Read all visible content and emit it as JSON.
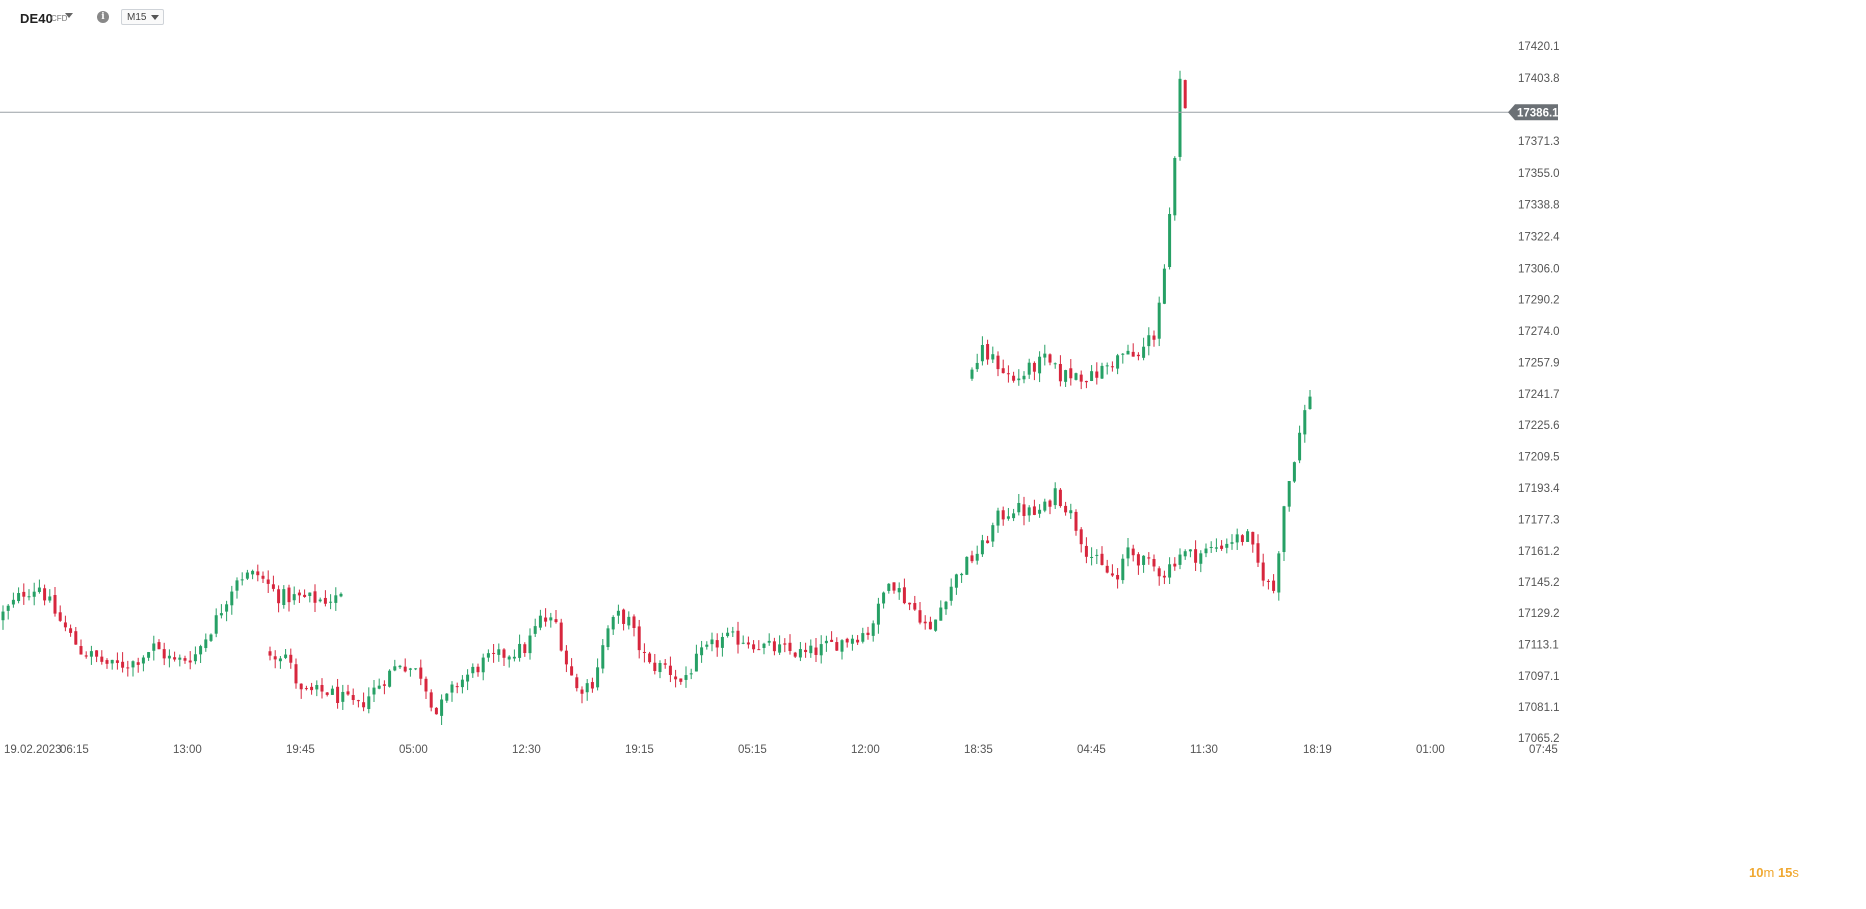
{
  "header": {
    "symbol": "DE40",
    "symbol_type": "CFD",
    "info_icon": "info-icon",
    "timeframe": "M15",
    "dropdown_icon": "chevron-down-icon"
  },
  "countdown": {
    "minutes": "10",
    "minutes_unit": "m",
    "seconds": "15",
    "seconds_unit": "s"
  },
  "colors": {
    "up": "#26a065",
    "down": "#d7263d",
    "price_line": "#9aa0a6",
    "price_tag": "#6b7075",
    "countdown": "#f0a830"
  },
  "chart_data": {
    "type": "candlestick",
    "title": "",
    "xlabel": "",
    "ylabel": "",
    "ylim": [
      17065.2,
      17436.4
    ],
    "y_ticks": [
      {
        "value": 17420.1,
        "label": "17420.1"
      },
      {
        "value": 17403.8,
        "label": "17403.8"
      },
      {
        "value": 17371.3,
        "label": "17371.3"
      },
      {
        "value": 17355.0,
        "label": "17355.0"
      },
      {
        "value": 17338.8,
        "label": "17338.8"
      },
      {
        "value": 17322.4,
        "label": "17322.4"
      },
      {
        "value": 17306.0,
        "label": "17306.0"
      },
      {
        "value": 17290.2,
        "label": "17290.2"
      },
      {
        "value": 17274.0,
        "label": "17274.0"
      },
      {
        "value": 17257.9,
        "label": "17257.9"
      },
      {
        "value": 17241.7,
        "label": "17241.7"
      },
      {
        "value": 17225.6,
        "label": "17225.6"
      },
      {
        "value": 17209.5,
        "label": "17209.5"
      },
      {
        "value": 17193.4,
        "label": "17193.4"
      },
      {
        "value": 17177.3,
        "label": "17177.3"
      },
      {
        "value": 17161.2,
        "label": "17161.2"
      },
      {
        "value": 17145.2,
        "label": "17145.2"
      },
      {
        "value": 17129.2,
        "label": "17129.2"
      },
      {
        "value": 17113.1,
        "label": "17113.1"
      },
      {
        "value": 17097.1,
        "label": "17097.1"
      },
      {
        "value": 17081.1,
        "label": "17081.1"
      },
      {
        "value": 17065.2,
        "label": "17065.2"
      }
    ],
    "x_ticks": [
      "19.02.2023",
      "06:15",
      "13:00",
      "19:45",
      "05:00",
      "12:30",
      "19:15",
      "05:15",
      "12:00",
      "18:35",
      "04:45",
      "11:30",
      "18:19",
      "01:00",
      "07:45"
    ],
    "current_price": 17386.1,
    "current_price_label": "17386.1",
    "segments": [
      {
        "start": 17126.0,
        "count": 66,
        "waypoints": [
          [
            0,
            17126
          ],
          [
            5,
            17140
          ],
          [
            8,
            17143
          ],
          [
            12,
            17125
          ],
          [
            16,
            17110
          ],
          [
            22,
            17102
          ],
          [
            26,
            17104
          ],
          [
            30,
            17112
          ],
          [
            34,
            17104
          ],
          [
            38,
            17108
          ],
          [
            42,
            17126
          ],
          [
            46,
            17148
          ],
          [
            50,
            17149
          ],
          [
            54,
            17138
          ],
          [
            58,
            17137
          ],
          [
            62,
            17136
          ],
          [
            66,
            17137
          ]
        ]
      },
      {
        "start": 17110.0,
        "count": 201,
        "waypoints": [
          [
            0,
            17110
          ],
          [
            4,
            17108
          ],
          [
            7,
            17088
          ],
          [
            12,
            17089
          ],
          [
            18,
            17081
          ],
          [
            22,
            17093
          ],
          [
            26,
            17104
          ],
          [
            30,
            17098
          ],
          [
            33,
            17078
          ],
          [
            37,
            17093
          ],
          [
            42,
            17104
          ],
          [
            46,
            17108
          ],
          [
            50,
            17111
          ],
          [
            53,
            17126
          ],
          [
            56,
            17124
          ],
          [
            58,
            17104
          ],
          [
            60,
            17090
          ],
          [
            63,
            17094
          ],
          [
            66,
            17121
          ],
          [
            68,
            17128
          ],
          [
            70,
            17125
          ],
          [
            72,
            17112
          ],
          [
            74,
            17102
          ],
          [
            77,
            17102
          ],
          [
            80,
            17094
          ],
          [
            84,
            17108
          ],
          [
            88,
            17116
          ],
          [
            92,
            17116
          ],
          [
            96,
            17112
          ],
          [
            100,
            17110
          ],
          [
            104,
            17108
          ],
          [
            108,
            17112
          ],
          [
            112,
            17116
          ],
          [
            116,
            17120
          ],
          [
            118,
            17131
          ],
          [
            120,
            17148
          ],
          [
            123,
            17137
          ],
          [
            126,
            17128
          ],
          [
            128,
            17119
          ],
          [
            131,
            17139
          ],
          [
            134,
            17152
          ],
          [
            138,
            17163
          ],
          [
            141,
            17178
          ],
          [
            144,
            17183
          ],
          [
            148,
            17180
          ],
          [
            150,
            17183
          ],
          [
            152,
            17192
          ],
          [
            155,
            17180
          ],
          [
            158,
            17162
          ],
          [
            161,
            17152
          ],
          [
            164,
            17146
          ],
          [
            166,
            17162
          ],
          [
            169,
            17155
          ],
          [
            173,
            17150
          ],
          [
            176,
            17160
          ],
          [
            179,
            17159
          ],
          [
            182,
            17162
          ],
          [
            186,
            17167
          ],
          [
            189,
            17168
          ],
          [
            191,
            17154
          ],
          [
            193,
            17144
          ],
          [
            194,
            17141
          ],
          [
            196,
            17185
          ],
          [
            198,
            17210
          ],
          [
            200,
            17232
          ],
          [
            201,
            17242
          ]
        ]
      },
      {
        "start": 17250.0,
        "count": 42,
        "waypoints": [
          [
            0,
            17250
          ],
          [
            3,
            17263
          ],
          [
            6,
            17257
          ],
          [
            9,
            17248
          ],
          [
            12,
            17254
          ],
          [
            15,
            17259
          ],
          [
            18,
            17251
          ],
          [
            21,
            17252
          ],
          [
            24,
            17250
          ],
          [
            27,
            17256
          ],
          [
            30,
            17262
          ],
          [
            33,
            17260
          ],
          [
            35,
            17270
          ],
          [
            36,
            17272
          ],
          [
            37,
            17290
          ],
          [
            38,
            17306
          ],
          [
            39,
            17331
          ],
          [
            40,
            17360
          ],
          [
            41,
            17400
          ],
          [
            42,
            17386
          ]
        ]
      }
    ]
  }
}
